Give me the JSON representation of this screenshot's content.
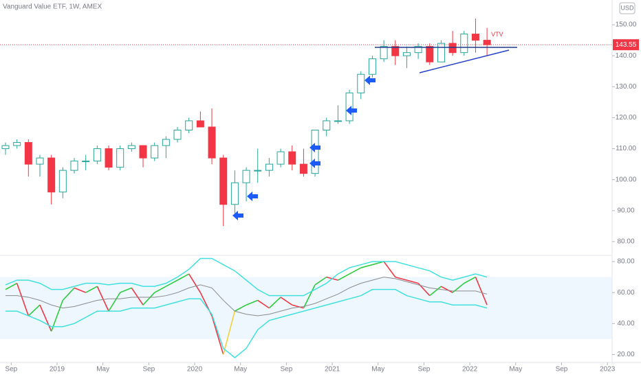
{
  "chart_data": [
    {
      "type": "candlestick",
      "title": "Vanguard Value ETF, 1W, AMEX",
      "symbol": "VTV",
      "currency": "USD",
      "last_price": 143.55,
      "up_color": "#26a69a",
      "down_color": "#f23645",
      "last_color": "#f23645",
      "x": [
        "2018-08",
        "2018-09",
        "2018-10",
        "2018-11",
        "2018-12",
        "2019-01",
        "2019-02",
        "2019-03",
        "2019-04",
        "2019-05",
        "2019-06",
        "2019-07",
        "2019-08",
        "2019-09",
        "2019-10",
        "2019-11",
        "2019-12",
        "2020-01",
        "2020-02",
        "2020-03",
        "2020-04",
        "2020-05",
        "2020-06",
        "2020-07",
        "2020-08",
        "2020-09",
        "2020-10",
        "2020-11",
        "2020-12",
        "2021-01",
        "2021-02",
        "2021-03",
        "2021-04",
        "2021-05",
        "2021-06",
        "2021-07",
        "2021-08",
        "2021-09",
        "2021-10",
        "2021-11",
        "2021-12",
        "2022-01",
        "2022-02"
      ],
      "open": [
        110,
        111,
        112,
        105,
        107,
        96,
        103,
        106,
        106,
        110,
        104,
        110,
        111,
        107,
        111,
        113,
        116,
        119,
        117,
        107,
        92,
        99,
        103,
        103,
        105,
        109,
        105,
        102,
        116,
        119,
        119,
        128,
        134,
        139,
        143,
        140,
        141,
        143,
        138,
        144,
        141,
        147,
        145
      ],
      "high": [
        112,
        113,
        113,
        108,
        108,
        104,
        107,
        108,
        111,
        111,
        111,
        112,
        111,
        112,
        114,
        117,
        120,
        122,
        123,
        108,
        103,
        104,
        110,
        107,
        110,
        111,
        110,
        116,
        120,
        124,
        129,
        135,
        140,
        145,
        145,
        143,
        144,
        144,
        145,
        148,
        148,
        152,
        149
      ],
      "low": [
        108,
        110,
        101,
        101,
        92,
        94,
        102,
        103,
        105,
        103,
        103,
        109,
        104,
        106,
        107,
        112,
        115,
        117,
        105,
        85,
        89,
        93,
        99,
        101,
        104,
        103,
        101,
        101,
        114,
        118,
        118,
        126,
        133,
        138,
        137,
        136,
        139,
        137,
        138,
        140,
        140,
        141,
        140
      ],
      "close": [
        111,
        112,
        105,
        107,
        96,
        103,
        106,
        106,
        110,
        104,
        110,
        111,
        107,
        111,
        113,
        116,
        119,
        117,
        107,
        92,
        99,
        103,
        103,
        105,
        109,
        105,
        102,
        116,
        119,
        119,
        128,
        134,
        139,
        143,
        140,
        141,
        143,
        138,
        144,
        141,
        147,
        145,
        143.55
      ],
      "ylim": [
        76,
        154
      ],
      "yticks": [
        {
          "value": 80,
          "label": "80.00"
        },
        {
          "value": 90,
          "label": "90.00"
        },
        {
          "value": 100,
          "label": "100.00"
        },
        {
          "value": 110,
          "label": "110.00"
        },
        {
          "value": 120,
          "label": "120.00"
        },
        {
          "value": 130,
          "label": "130.00"
        },
        {
          "value": 140,
          "label": "140.00"
        },
        {
          "value": 150,
          "label": "150.00"
        }
      ]
    },
    {
      "type": "line",
      "band": [
        30,
        70
      ],
      "band_color": "#e3f2fd",
      "x": [
        "2018-08",
        "2018-09",
        "2018-10",
        "2018-11",
        "2018-12",
        "2019-01",
        "2019-02",
        "2019-03",
        "2019-04",
        "2019-05",
        "2019-06",
        "2019-07",
        "2019-08",
        "2019-09",
        "2019-10",
        "2019-11",
        "2019-12",
        "2020-01",
        "2020-02",
        "2020-03",
        "2020-04",
        "2020-05",
        "2020-06",
        "2020-07",
        "2020-08",
        "2020-09",
        "2020-10",
        "2020-11",
        "2020-12",
        "2021-01",
        "2021-02",
        "2021-03",
        "2021-04",
        "2021-05",
        "2021-06",
        "2021-07",
        "2021-08",
        "2021-09",
        "2021-10",
        "2021-11",
        "2021-12",
        "2022-01",
        "2022-02"
      ],
      "series": [
        {
          "color": "#2ecc40",
          "values": [
            62,
            66,
            45,
            52,
            35,
            55,
            63,
            60,
            64,
            48,
            60,
            63,
            52,
            60,
            64,
            68,
            72,
            60,
            45,
            20,
            48,
            52,
            55,
            50,
            57,
            52,
            50,
            65,
            70,
            68,
            72,
            76,
            78,
            80,
            70,
            68,
            66,
            58,
            64,
            60,
            66,
            70,
            52
          ]
        },
        {
          "color": "#40e0e0",
          "values": [
            65,
            68,
            68,
            66,
            62,
            62,
            64,
            66,
            66,
            65,
            66,
            66,
            64,
            64,
            66,
            70,
            75,
            82,
            82,
            78,
            74,
            68,
            62,
            58,
            58,
            58,
            58,
            62,
            66,
            72,
            76,
            78,
            80,
            80,
            80,
            78,
            76,
            74,
            70,
            68,
            70,
            72,
            70
          ]
        },
        {
          "color": "#40e0e0",
          "values": [
            48,
            48,
            45,
            42,
            38,
            38,
            40,
            44,
            48,
            48,
            48,
            50,
            50,
            50,
            52,
            54,
            56,
            56,
            46,
            24,
            18,
            24,
            36,
            42,
            44,
            46,
            48,
            50,
            52,
            54,
            56,
            58,
            62,
            62,
            62,
            58,
            56,
            54,
            54,
            52,
            52,
            52,
            50
          ]
        },
        {
          "color": "#8a8a8a",
          "values": [
            58,
            58,
            57,
            55,
            52,
            50,
            51,
            53,
            55,
            56,
            56,
            57,
            57,
            57,
            58,
            60,
            63,
            65,
            63,
            55,
            48,
            46,
            45,
            46,
            48,
            50,
            51,
            53,
            56,
            59,
            63,
            66,
            68,
            70,
            69,
            67,
            65,
            63,
            62,
            61,
            61,
            61,
            59
          ]
        }
      ],
      "ylim": [
        14,
        84
      ],
      "yticks": [
        {
          "value": 20,
          "label": "20.00"
        },
        {
          "value": 40,
          "label": "40.00"
        },
        {
          "value": 60,
          "label": "60.00"
        },
        {
          "value": 80,
          "label": "80.00"
        }
      ],
      "xticks": [
        {
          "value": "2018-09",
          "label": "Sep"
        },
        {
          "value": "2019-01",
          "label": "2019"
        },
        {
          "value": "2019-05",
          "label": "May"
        },
        {
          "value": "2019-09",
          "label": "Sep"
        },
        {
          "value": "2020-01",
          "label": "2020"
        },
        {
          "value": "2020-05",
          "label": "May"
        },
        {
          "value": "2020-09",
          "label": "Sep"
        },
        {
          "value": "2021-01",
          "label": "2021"
        },
        {
          "value": "2021-05",
          "label": "May"
        },
        {
          "value": "2021-09",
          "label": "Sep"
        },
        {
          "value": "2022-01",
          "label": "2022"
        },
        {
          "value": "2022-05",
          "label": "May"
        },
        {
          "value": "2022-09",
          "label": "Sep"
        },
        {
          "value": "2023-01",
          "label": "2023"
        }
      ]
    }
  ]
}
